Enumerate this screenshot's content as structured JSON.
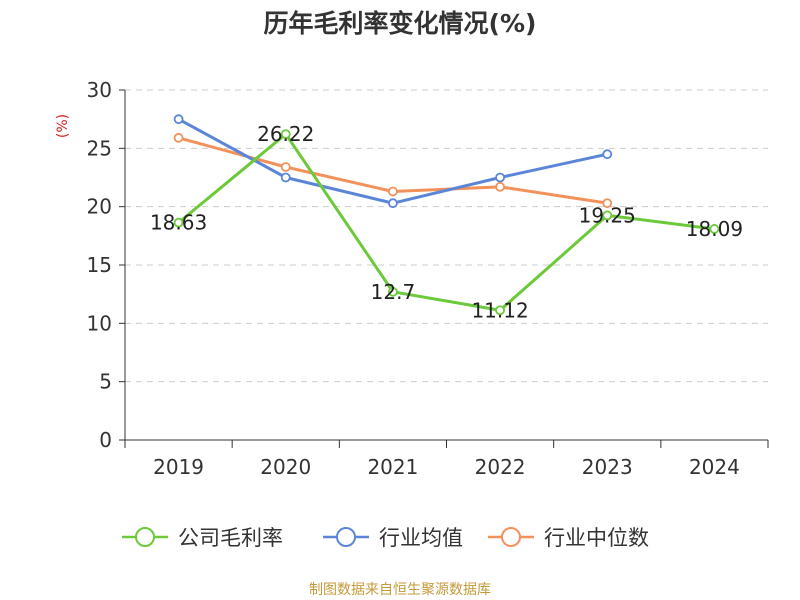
{
  "chart_data": {
    "type": "line",
    "title": "历年毛利率变化情况(%)",
    "ylabel": "(%)",
    "xlabel": "",
    "categories": [
      "2019",
      "2020",
      "2021",
      "2022",
      "2023",
      "2024"
    ],
    "y_ticks": [
      "0",
      "5",
      "10",
      "15",
      "20",
      "25",
      "30"
    ],
    "ylim": [
      0,
      30
    ],
    "grid": true,
    "legend_position": "bottom",
    "series": [
      {
        "name": "公司毛利率",
        "color": "#6bc93a",
        "values": [
          18.63,
          26.22,
          12.7,
          11.12,
          19.25,
          18.09
        ],
        "labels": [
          "18.63",
          "26.22",
          "12.7",
          "11.12",
          "19.25",
          "18.09"
        ]
      },
      {
        "name": "行业均值",
        "color": "#5b86d8",
        "values": [
          27.5,
          22.5,
          20.3,
          22.5,
          24.5,
          null
        ]
      },
      {
        "name": "行业中位数",
        "color": "#f2925a",
        "values": [
          25.9,
          23.4,
          21.3,
          21.7,
          20.3,
          null
        ]
      }
    ]
  },
  "source": "制图数据来自恒生聚源数据库"
}
